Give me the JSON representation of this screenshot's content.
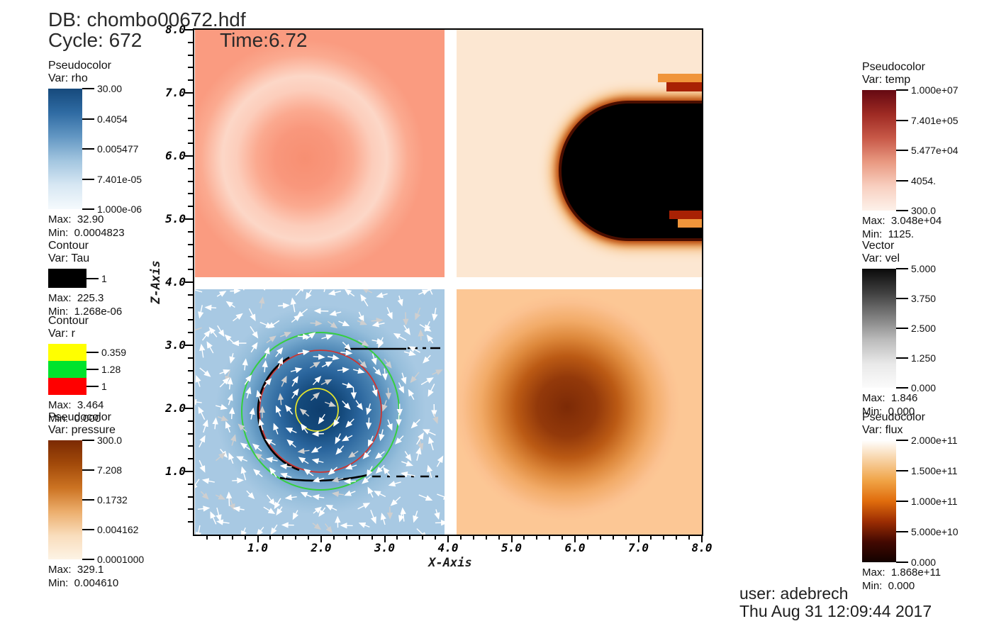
{
  "header": {
    "db_line": "DB: chombo00672.hdf",
    "cycle_label": "Cycle: 672",
    "time_label": "Time:6.72"
  },
  "footer": {
    "user_line": "user: adebrech",
    "timestamp_line": "Thu Aug 31 12:09:44 2017"
  },
  "axes": {
    "x_label": "X-Axis",
    "z_label": "Z-Axis",
    "x_ticks": [
      "1.0",
      "2.0",
      "3.0",
      "4.0",
      "5.0",
      "6.0",
      "7.0",
      "8.0"
    ],
    "z_ticks": [
      "1.0",
      "2.0",
      "3.0",
      "4.0",
      "5.0",
      "6.0",
      "7.0",
      "8.0"
    ]
  },
  "legends": {
    "rho": {
      "type": "Pseudocolor",
      "var_label": "Var: rho",
      "colors": [
        "#16497c",
        "#2f6ba3",
        "#6397c3",
        "#a3c6e0",
        "#d7e7f3",
        "#f5fafd"
      ],
      "ticks": [
        "30.00",
        "0.4054",
        "0.005477",
        "7.401e-05",
        "1.000e-06"
      ],
      "max_label": "Max:  32.90",
      "min_label": "Min:  0.0004823"
    },
    "tau": {
      "type": "Contour",
      "var_label": "Var: Tau",
      "entries": [
        {
          "color": "#000000",
          "label": "1"
        }
      ],
      "max_label": "Max:  225.3",
      "min_label": "Min:  1.268e-06"
    },
    "r": {
      "type": "Contour",
      "var_label": "Var: r",
      "entries": [
        {
          "color": "#ffff00",
          "label": "0.359"
        },
        {
          "color": "#00e32d",
          "label": "1.28"
        },
        {
          "color": "#ff0000",
          "label": "1"
        }
      ],
      "max_label": "Max:  3.464",
      "min_label": "Min:  0.000"
    },
    "pressure": {
      "type": "Pseudocolor",
      "var_label": "Var: pressure",
      "colors": [
        "#7b2a03",
        "#a24a0a",
        "#cc7322",
        "#ecae6d",
        "#f9ddbc",
        "#fdf3e5"
      ],
      "ticks": [
        "300.0",
        "7.208",
        "0.1732",
        "0.004162",
        "0.0001000"
      ],
      "max_label": "Max:  329.1",
      "min_label": "Min:  0.004610"
    },
    "temp": {
      "type": "Pseudocolor",
      "var_label": "Var: temp",
      "colors": [
        "#650912",
        "#9e2a23",
        "#c85948",
        "#e99a82",
        "#f8cfc0",
        "#fdf1ea"
      ],
      "ticks": [
        "1.000e+07",
        "7.401e+05",
        "5.477e+04",
        "4054.",
        "300.0"
      ],
      "max_label": "Max:  3.048e+04",
      "min_label": "Min:  1125."
    },
    "vel": {
      "type": "Vector",
      "var_label": "Var: vel",
      "colors": [
        "#0a0a0a",
        "#3f3f3f",
        "#7d7d7d",
        "#bcbcbc",
        "#e9e9e9",
        "#fbfbfb"
      ],
      "ticks": [
        "5.000",
        "3.750",
        "2.500",
        "1.250",
        "0.000"
      ],
      "max_label": "Max:  1.846",
      "min_label": "Min:  0.000"
    },
    "flux": {
      "type": "Pseudocolor",
      "var_label": "Var: flux",
      "colors": [
        "#ffffff",
        "#f7d0a0",
        "#f0a345",
        "#e06c0c",
        "#9c2d03",
        "#430901",
        "#120200"
      ],
      "ticks": [
        "2.000e+11",
        "1.500e+11",
        "1.000e+11",
        "5.000e+10",
        "0.000"
      ],
      "max_label": "Max:  1.868e+11",
      "min_label": "Min:  0.000"
    }
  },
  "chart_data": {
    "type": "heatmap",
    "layout": "2x2 field panels sharing one axis frame",
    "title": "DB: chombo00672.hdf  Cycle: 672  Time:6.72",
    "xlabel": "X-Axis",
    "ylabel": "Z-Axis",
    "xlim": [
      0,
      8
    ],
    "ylim": [
      0,
      8
    ],
    "grid": false,
    "panels": [
      {
        "position": "top-left",
        "variable": "temp",
        "colormap": "white-to-darkred",
        "features": "uniform salmon field with lighter (cooler) diffuse ring centered near x=2, z=6.2"
      },
      {
        "position": "top-right",
        "variable": "flux",
        "colormap": "white-orange-black",
        "features": "black near-zero-flux bullet-shaped region with dark-red/orange rim, nose near x=5.7 z=6.2, extending to x=8; small orange/red streaks at right edge near z=7.3 and z=5.1"
      },
      {
        "position": "bottom-left",
        "variable": "rho",
        "colormap": "white-to-darkblue",
        "features": "dense dark-blue core centered near x=2 z=1.9 with white vel vector field, yellow/red/green r-contour circles, black Tau contour arc and dashed black Tau segments near z=3.05 and z=0.95"
      },
      {
        "position": "bottom-right",
        "variable": "pressure",
        "colormap": "white-to-darkbrown",
        "features": "high-pressure dark brown blob centered near x=5.75 z=1.9"
      }
    ],
    "scales": {
      "rho": {
        "tick_min": 1e-06,
        "tick_max": 30.0,
        "data_min": 0.0004823,
        "data_max": 32.9,
        "log": true
      },
      "temp": {
        "tick_min": 300.0,
        "tick_max": 10000000.0,
        "data_min": 1125.0,
        "data_max": 30480.0,
        "log": true
      },
      "pressure": {
        "tick_min": 0.0001,
        "tick_max": 300.0,
        "data_min": 0.00461,
        "data_max": 329.1,
        "log": true
      },
      "flux": {
        "tick_min": 0.0,
        "tick_max": 200000000000.0,
        "data_min": 0.0,
        "data_max": 186800000000.0,
        "log": false
      },
      "vel": {
        "tick_min": 0.0,
        "tick_max": 5.0,
        "data_min": 0.0,
        "data_max": 1.846,
        "log": false
      },
      "tau_contour_levels": [
        1
      ],
      "r_contour_levels": [
        0.359,
        1.28,
        1
      ]
    }
  }
}
